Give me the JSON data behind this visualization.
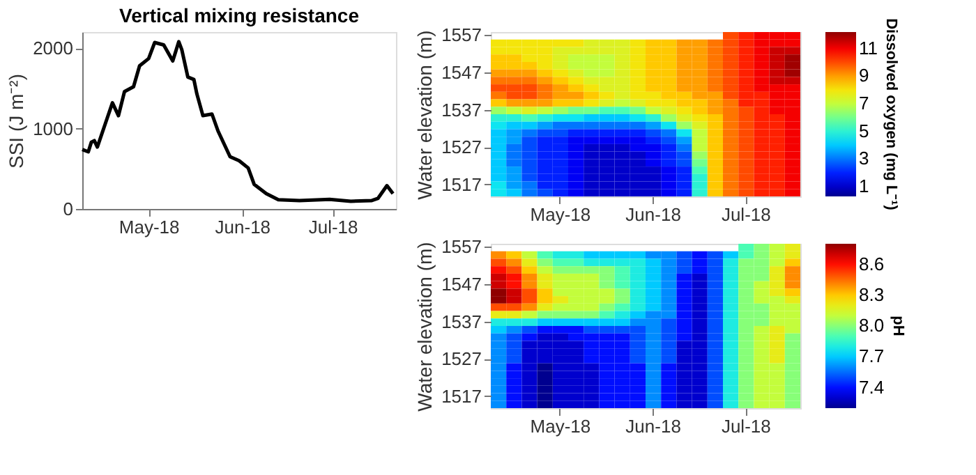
{
  "chart_data": [
    {
      "type": "line",
      "title": "Vertical mixing resistance",
      "ylabel": "SSI (J m⁻²)",
      "xlim": [
        "2018-04-09",
        "2018-07-22"
      ],
      "ylim": [
        0,
        2200
      ],
      "yticks": [
        0,
        1000,
        2000
      ],
      "xticks": [
        {
          "value": "2018-05-01",
          "label": "May-18"
        },
        {
          "value": "2018-06-01",
          "label": "Jun-18"
        },
        {
          "value": "2018-07-01",
          "label": "Jul-18"
        }
      ],
      "grid": false,
      "legend": false,
      "x": [
        "2018-04-09",
        "2018-04-11",
        "2018-04-12",
        "2018-04-13",
        "2018-04-14",
        "2018-04-17",
        "2018-04-19",
        "2018-04-21",
        "2018-04-23",
        "2018-04-26",
        "2018-04-28",
        "2018-05-01",
        "2018-05-03",
        "2018-05-06",
        "2018-05-09",
        "2018-05-11",
        "2018-05-12",
        "2018-05-14",
        "2018-05-16",
        "2018-05-17",
        "2018-05-19",
        "2018-05-22",
        "2018-05-24",
        "2018-05-28",
        "2018-05-31",
        "2018-06-03",
        "2018-06-05",
        "2018-06-09",
        "2018-06-13",
        "2018-06-20",
        "2018-06-30",
        "2018-07-07",
        "2018-07-14",
        "2018-07-16",
        "2018-07-19",
        "2018-07-21"
      ],
      "series": [
        {
          "color": "#000000",
          "values": [
            740,
            710,
            830,
            850,
            770,
            1100,
            1320,
            1160,
            1460,
            1520,
            1780,
            1870,
            2070,
            2040,
            1840,
            2080,
            1980,
            1640,
            1610,
            1430,
            1160,
            1180,
            970,
            650,
            600,
            510,
            305,
            190,
            115,
            105,
            120,
            95,
            105,
            130,
            290,
            190
          ]
        }
      ]
    },
    {
      "type": "heatmap",
      "ylabel": "Water elevation (m)",
      "clabel": "Dissolved oxygen (mg L⁻¹)",
      "clim": [
        0.3,
        12.2
      ],
      "cticks": [
        1,
        3,
        5,
        7,
        9,
        11
      ],
      "categories": [
        null,
        null,
        null,
        null,
        "May-18",
        null,
        null,
        null,
        null,
        null,
        "Jun-18",
        null,
        null,
        null,
        null,
        null,
        "Jul-18",
        null,
        null,
        null
      ],
      "y_categories": [
        "1557",
        null,
        null,
        null,
        null,
        "1547",
        null,
        null,
        null,
        null,
        "1537",
        null,
        null,
        null,
        null,
        "1527",
        null,
        null,
        null,
        null,
        "1517",
        null
      ],
      "cells": [
        [
          null,
          null,
          null,
          null,
          null,
          null,
          null,
          null,
          null,
          null,
          null,
          null,
          null,
          null,
          null,
          10,
          10.5,
          11,
          11,
          11
        ],
        [
          8,
          8,
          8,
          8,
          8,
          8,
          7.5,
          7.5,
          7.5,
          8,
          8.5,
          8.5,
          9,
          9,
          9.5,
          10,
          10.5,
          11,
          11,
          11
        ],
        [
          8,
          8,
          8,
          8,
          7.5,
          7.5,
          7.5,
          7.5,
          7.5,
          8,
          8.5,
          8.5,
          9,
          9,
          9.5,
          10,
          10.5,
          11,
          11.5,
          11.5
        ],
        [
          8.5,
          8.5,
          8,
          8,
          7.5,
          7,
          7,
          7,
          7.5,
          8,
          8.5,
          8.5,
          9,
          9,
          9.5,
          10,
          10.5,
          11,
          11.5,
          12
        ],
        [
          8.5,
          8.5,
          8.5,
          8,
          7.5,
          7,
          7,
          7,
          7.5,
          8,
          8.5,
          8.5,
          9,
          9,
          9.5,
          10,
          10.5,
          11,
          11.5,
          12
        ],
        [
          9,
          9,
          9,
          8.5,
          8,
          7.5,
          7,
          7,
          7.5,
          8,
          8.5,
          8.5,
          9,
          9,
          9.5,
          10,
          10.5,
          11,
          11.5,
          12
        ],
        [
          9.5,
          9.5,
          9.5,
          9,
          8.5,
          8,
          7.5,
          7.5,
          7.5,
          8,
          8.5,
          8.5,
          9,
          9,
          9.5,
          10,
          10.5,
          11,
          11.5,
          11.5
        ],
        [
          10,
          10,
          10,
          9.5,
          9,
          8.5,
          8,
          7.5,
          7.5,
          8,
          8.5,
          8.5,
          9,
          9,
          9.5,
          10,
          10.5,
          11,
          11,
          11
        ],
        [
          9.5,
          10,
          10,
          9.5,
          9,
          9,
          8.5,
          8,
          7.5,
          8,
          8,
          8.5,
          8.5,
          9,
          9,
          10,
          10.5,
          10.5,
          11,
          11
        ],
        [
          8.5,
          9,
          9,
          9,
          8.5,
          8.5,
          8,
          7.5,
          7,
          7.5,
          8,
          8,
          8.5,
          8.5,
          9,
          9.5,
          10.5,
          10.5,
          11,
          11
        ],
        [
          6.5,
          7,
          7.5,
          7,
          6.5,
          6,
          6,
          5.5,
          5.5,
          6,
          7,
          7.5,
          8,
          8.5,
          9,
          9.5,
          10,
          10.5,
          11,
          11
        ],
        [
          5,
          5,
          5.5,
          5,
          4.5,
          4.5,
          4,
          4,
          4,
          4.5,
          5,
          6.5,
          7.5,
          8,
          8.5,
          9.5,
          10,
          10.5,
          10.5,
          11
        ],
        [
          4.5,
          4,
          4,
          3.5,
          3,
          3,
          3,
          3,
          3,
          3,
          3.5,
          4.5,
          6.5,
          7.5,
          8.5,
          9.5,
          10,
          10.5,
          10.5,
          11
        ],
        [
          4,
          3.5,
          3,
          2.5,
          2.5,
          2,
          2,
          2,
          2,
          2,
          2.5,
          3,
          4.5,
          7,
          8.5,
          9.5,
          10,
          10.5,
          10.5,
          11
        ],
        [
          4,
          3.5,
          2.5,
          2,
          2,
          1.5,
          1.5,
          1.5,
          1.5,
          1.5,
          2,
          2.5,
          3.5,
          7,
          8.5,
          9.5,
          10,
          10.5,
          10.5,
          11
        ],
        [
          4,
          3,
          2.5,
          2,
          2,
          1.5,
          1,
          1,
          1,
          1.5,
          1.5,
          2,
          3,
          7,
          8.5,
          9.5,
          10,
          10.5,
          10.5,
          11
        ],
        [
          4,
          3,
          2.5,
          2,
          2,
          1.5,
          1,
          1,
          1,
          1,
          1.5,
          2,
          2.5,
          6.5,
          8.5,
          9.5,
          10,
          10.5,
          10.5,
          11
        ],
        [
          4,
          3,
          2.5,
          2,
          2,
          1.5,
          1,
          1,
          1,
          1,
          1.5,
          2,
          2.5,
          6,
          8.5,
          9.5,
          10,
          10.5,
          10.5,
          11
        ],
        [
          4,
          3.5,
          2.5,
          2,
          2,
          1.5,
          1,
          1,
          1,
          1,
          1,
          1.5,
          2,
          5.5,
          8.5,
          9.5,
          10,
          10.5,
          10.5,
          11
        ],
        [
          4,
          3.5,
          2.5,
          2,
          2,
          1.5,
          1,
          1,
          1,
          1,
          1,
          1.5,
          2,
          5,
          8.5,
          9.5,
          10,
          10.5,
          10.5,
          11
        ],
        [
          4.5,
          3.5,
          3,
          2,
          2,
          1.5,
          1,
          1,
          1,
          1,
          1,
          1.5,
          2,
          5,
          8.5,
          9.5,
          10,
          10.5,
          10.5,
          11
        ],
        [
          4.5,
          4,
          3,
          2.5,
          2,
          1.5,
          1,
          1,
          1,
          1,
          1,
          1.5,
          2,
          5,
          8.5,
          9.5,
          10,
          10.5,
          10.5,
          11
        ]
      ]
    },
    {
      "type": "heatmap",
      "ylabel": "Water elevation (m)",
      "clabel": "pH",
      "clim": [
        7.2,
        8.8
      ],
      "cticks": [
        7.4,
        7.7,
        {
          "value": 8.0,
          "label": "8.0"
        },
        8.3,
        8.6
      ],
      "categories": [
        null,
        null,
        null,
        null,
        "May-18",
        null,
        null,
        null,
        null,
        null,
        "Jun-18",
        null,
        null,
        null,
        null,
        null,
        "Jul-18",
        null,
        null,
        null
      ],
      "y_categories": [
        "1557",
        null,
        null,
        null,
        null,
        "1547",
        null,
        null,
        null,
        null,
        "1537",
        null,
        null,
        null,
        null,
        "1527",
        null,
        null,
        null,
        null,
        "1517",
        null
      ],
      "cells": [
        [
          null,
          null,
          null,
          null,
          null,
          null,
          null,
          null,
          null,
          null,
          null,
          null,
          null,
          null,
          null,
          null,
          7.9,
          8.0,
          8.1,
          8.2
        ],
        [
          8.4,
          8.3,
          8.1,
          7.9,
          7.8,
          7.8,
          7.7,
          7.7,
          7.7,
          7.7,
          7.6,
          7.6,
          7.5,
          7.4,
          7.5,
          7.7,
          7.9,
          8.0,
          8.1,
          8.2
        ],
        [
          8.5,
          8.4,
          8.2,
          8.0,
          7.9,
          7.9,
          7.8,
          7.8,
          7.8,
          7.8,
          7.7,
          7.6,
          7.5,
          7.4,
          7.5,
          7.8,
          8.0,
          8.0,
          8.1,
          8.3
        ],
        [
          8.6,
          8.5,
          8.3,
          8.1,
          8.0,
          8.0,
          8.0,
          8.0,
          7.9,
          7.8,
          7.7,
          7.6,
          7.5,
          7.4,
          7.5,
          7.8,
          8.0,
          8.0,
          8.2,
          8.4
        ],
        [
          8.7,
          8.6,
          8.4,
          8.2,
          8.1,
          8.1,
          8.1,
          8.0,
          7.9,
          7.8,
          7.7,
          7.6,
          7.4,
          7.3,
          7.5,
          7.8,
          8.0,
          8.0,
          8.2,
          8.4
        ],
        [
          8.7,
          8.6,
          8.4,
          8.2,
          8.1,
          8.1,
          8.1,
          8.0,
          7.9,
          7.8,
          7.7,
          7.6,
          7.4,
          7.3,
          7.5,
          7.8,
          8.0,
          8.1,
          8.2,
          8.4
        ],
        [
          8.8,
          8.7,
          8.5,
          8.3,
          8.1,
          8.1,
          8.1,
          8.1,
          8.0,
          7.8,
          7.7,
          7.6,
          7.4,
          7.3,
          7.5,
          7.8,
          8.0,
          8.1,
          8.2,
          8.3
        ],
        [
          8.8,
          8.7,
          8.5,
          8.3,
          8.2,
          8.1,
          8.1,
          8.1,
          8.0,
          7.8,
          7.7,
          7.6,
          7.4,
          7.3,
          7.5,
          7.8,
          8.0,
          8.1,
          8.1,
          8.2
        ],
        [
          8.5,
          8.5,
          8.4,
          8.2,
          8.1,
          8.1,
          8.1,
          8.0,
          7.9,
          7.8,
          7.7,
          7.6,
          7.4,
          7.3,
          7.5,
          7.8,
          8.0,
          8.0,
          8.1,
          8.1
        ],
        [
          8.2,
          8.2,
          8.1,
          8.0,
          8.0,
          8.0,
          8.0,
          7.9,
          7.8,
          7.7,
          7.6,
          7.6,
          7.4,
          7.3,
          7.5,
          7.8,
          8.0,
          8.0,
          8.1,
          8.1
        ],
        [
          7.8,
          7.8,
          7.8,
          7.7,
          7.7,
          7.7,
          7.7,
          7.7,
          7.7,
          7.6,
          7.6,
          7.5,
          7.4,
          7.3,
          7.5,
          7.8,
          8.0,
          8.0,
          8.1,
          8.1
        ],
        [
          7.7,
          7.6,
          7.5,
          7.4,
          7.4,
          7.4,
          7.5,
          7.5,
          7.5,
          7.5,
          7.6,
          7.5,
          7.4,
          7.3,
          7.5,
          7.8,
          8.0,
          8.1,
          8.2,
          8.1
        ],
        [
          7.6,
          7.5,
          7.4,
          7.3,
          7.3,
          7.4,
          7.4,
          7.4,
          7.4,
          7.5,
          7.6,
          7.5,
          7.4,
          7.3,
          7.5,
          7.8,
          8.0,
          8.1,
          8.2,
          8.0
        ],
        [
          7.6,
          7.5,
          7.3,
          7.3,
          7.3,
          7.3,
          7.4,
          7.4,
          7.4,
          7.5,
          7.6,
          7.5,
          7.3,
          7.3,
          7.5,
          7.8,
          8.0,
          8.1,
          8.2,
          8.0
        ],
        [
          7.6,
          7.5,
          7.3,
          7.3,
          7.3,
          7.3,
          7.4,
          7.4,
          7.4,
          7.5,
          7.6,
          7.5,
          7.3,
          7.3,
          7.5,
          7.8,
          8.0,
          8.1,
          8.2,
          8.0
        ],
        [
          7.6,
          7.5,
          7.3,
          7.3,
          7.3,
          7.3,
          7.4,
          7.4,
          7.4,
          7.5,
          7.6,
          7.5,
          7.3,
          7.3,
          7.5,
          7.8,
          8.0,
          8.1,
          8.2,
          8.0
        ],
        [
          7.6,
          7.4,
          7.3,
          7.2,
          7.3,
          7.3,
          7.3,
          7.4,
          7.4,
          7.4,
          7.6,
          7.4,
          7.3,
          7.3,
          7.5,
          7.8,
          8.0,
          8.1,
          8.1,
          8.0
        ],
        [
          7.6,
          7.4,
          7.3,
          7.2,
          7.3,
          7.3,
          7.3,
          7.4,
          7.4,
          7.4,
          7.6,
          7.4,
          7.3,
          7.3,
          7.5,
          7.8,
          8.0,
          8.1,
          8.1,
          8.0
        ],
        [
          7.6,
          7.4,
          7.3,
          7.2,
          7.3,
          7.3,
          7.3,
          7.4,
          7.4,
          7.4,
          7.6,
          7.4,
          7.3,
          7.3,
          7.5,
          7.8,
          8.0,
          8.1,
          8.1,
          8.0
        ],
        [
          7.6,
          7.4,
          7.3,
          7.2,
          7.3,
          7.3,
          7.3,
          7.4,
          7.4,
          7.4,
          7.6,
          7.4,
          7.3,
          7.3,
          7.5,
          7.8,
          8.0,
          8.1,
          8.1,
          8.0
        ],
        [
          7.6,
          7.4,
          7.3,
          7.2,
          7.3,
          7.3,
          7.3,
          7.4,
          7.4,
          7.4,
          7.6,
          7.4,
          7.3,
          7.3,
          7.5,
          7.8,
          8.0,
          8.1,
          8.1,
          8.0
        ],
        [
          7.6,
          7.4,
          7.3,
          7.2,
          7.3,
          7.3,
          7.3,
          7.4,
          7.4,
          7.4,
          7.6,
          7.4,
          7.3,
          7.3,
          7.5,
          7.8,
          8.0,
          8.1,
          8.1,
          8.0
        ]
      ]
    }
  ]
}
